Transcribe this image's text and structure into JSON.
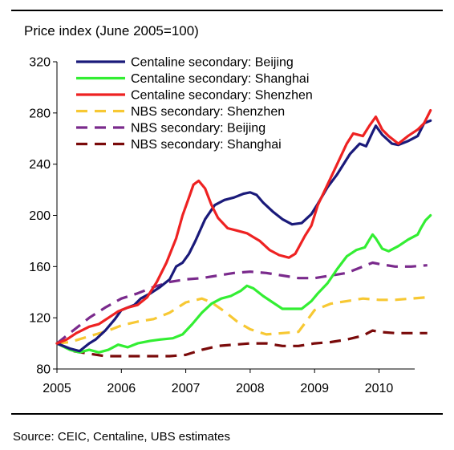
{
  "chart_data": {
    "type": "line",
    "title": "Price index (June 2005=100)",
    "xlabel": "",
    "ylabel": "",
    "xlim": [
      2005.0,
      2010.8
    ],
    "ylim": [
      80,
      320
    ],
    "x_ticks": [
      2005,
      2006,
      2007,
      2008,
      2009,
      2010
    ],
    "y_ticks": [
      80,
      120,
      160,
      200,
      240,
      280,
      320
    ],
    "legend_position": "top-left",
    "grid": false,
    "series": [
      {
        "name": "Centaline secondary: Beijing",
        "color": "#1a1a7a",
        "dash": "solid",
        "points": [
          [
            2005.0,
            100
          ],
          [
            2005.2,
            96
          ],
          [
            2005.35,
            94
          ],
          [
            2005.5,
            100
          ],
          [
            2005.6,
            103
          ],
          [
            2005.75,
            110
          ],
          [
            2005.9,
            119
          ],
          [
            2006.0,
            126
          ],
          [
            2006.1,
            128
          ],
          [
            2006.2,
            130
          ],
          [
            2006.3,
            135
          ],
          [
            2006.45,
            139
          ],
          [
            2006.6,
            144
          ],
          [
            2006.75,
            150
          ],
          [
            2006.85,
            160
          ],
          [
            2006.95,
            163
          ],
          [
            2007.05,
            170
          ],
          [
            2007.15,
            180
          ],
          [
            2007.3,
            197
          ],
          [
            2007.45,
            208
          ],
          [
            2007.6,
            212
          ],
          [
            2007.75,
            214
          ],
          [
            2007.9,
            217
          ],
          [
            2008.0,
            218
          ],
          [
            2008.1,
            216
          ],
          [
            2008.2,
            210
          ],
          [
            2008.35,
            203
          ],
          [
            2008.5,
            197
          ],
          [
            2008.65,
            193
          ],
          [
            2008.8,
            194
          ],
          [
            2008.95,
            201
          ],
          [
            2009.05,
            209
          ],
          [
            2009.2,
            222
          ],
          [
            2009.35,
            232
          ],
          [
            2009.55,
            248
          ],
          [
            2009.7,
            256
          ],
          [
            2009.8,
            254
          ],
          [
            2009.9,
            265
          ],
          [
            2009.95,
            270
          ],
          [
            2010.05,
            263
          ],
          [
            2010.2,
            256
          ],
          [
            2010.3,
            255
          ],
          [
            2010.45,
            258
          ],
          [
            2010.6,
            262
          ],
          [
            2010.7,
            272
          ],
          [
            2010.8,
            274
          ]
        ]
      },
      {
        "name": "Centaline secondary: Shanghai",
        "color": "#33ee33",
        "dash": "solid",
        "points": [
          [
            2005.0,
            100
          ],
          [
            2005.2,
            95
          ],
          [
            2005.35,
            93
          ],
          [
            2005.5,
            95
          ],
          [
            2005.65,
            93
          ],
          [
            2005.8,
            95
          ],
          [
            2005.95,
            99
          ],
          [
            2006.1,
            97
          ],
          [
            2006.25,
            100
          ],
          [
            2006.45,
            102
          ],
          [
            2006.6,
            103
          ],
          [
            2006.8,
            104
          ],
          [
            2006.95,
            107
          ],
          [
            2007.1,
            115
          ],
          [
            2007.25,
            124
          ],
          [
            2007.4,
            131
          ],
          [
            2007.55,
            135
          ],
          [
            2007.7,
            137
          ],
          [
            2007.85,
            141
          ],
          [
            2007.95,
            145
          ],
          [
            2008.05,
            143
          ],
          [
            2008.2,
            137
          ],
          [
            2008.35,
            132
          ],
          [
            2008.5,
            127
          ],
          [
            2008.65,
            127
          ],
          [
            2008.8,
            127
          ],
          [
            2008.95,
            133
          ],
          [
            2009.05,
            139
          ],
          [
            2009.2,
            147
          ],
          [
            2009.35,
            158
          ],
          [
            2009.5,
            168
          ],
          [
            2009.65,
            173
          ],
          [
            2009.78,
            175
          ],
          [
            2009.85,
            181
          ],
          [
            2009.9,
            185
          ],
          [
            2009.95,
            182
          ],
          [
            2010.05,
            174
          ],
          [
            2010.15,
            172
          ],
          [
            2010.3,
            176
          ],
          [
            2010.45,
            181
          ],
          [
            2010.6,
            185
          ],
          [
            2010.65,
            190
          ],
          [
            2010.72,
            196
          ],
          [
            2010.8,
            200
          ]
        ]
      },
      {
        "name": "Centaline secondary: Shenzhen",
        "color": "#ee2222",
        "dash": "solid",
        "points": [
          [
            2005.0,
            100
          ],
          [
            2005.15,
            103
          ],
          [
            2005.3,
            108
          ],
          [
            2005.5,
            113
          ],
          [
            2005.65,
            115
          ],
          [
            2005.8,
            120
          ],
          [
            2005.95,
            125
          ],
          [
            2006.1,
            128
          ],
          [
            2006.25,
            130
          ],
          [
            2006.4,
            136
          ],
          [
            2006.55,
            148
          ],
          [
            2006.7,
            163
          ],
          [
            2006.85,
            182
          ],
          [
            2006.95,
            200
          ],
          [
            2007.05,
            214
          ],
          [
            2007.12,
            224
          ],
          [
            2007.2,
            227
          ],
          [
            2007.3,
            221
          ],
          [
            2007.4,
            208
          ],
          [
            2007.5,
            198
          ],
          [
            2007.65,
            190
          ],
          [
            2007.8,
            188
          ],
          [
            2007.95,
            186
          ],
          [
            2008.05,
            183
          ],
          [
            2008.15,
            180
          ],
          [
            2008.3,
            173
          ],
          [
            2008.45,
            169
          ],
          [
            2008.6,
            167
          ],
          [
            2008.7,
            170
          ],
          [
            2008.85,
            184
          ],
          [
            2008.95,
            192
          ],
          [
            2009.05,
            208
          ],
          [
            2009.2,
            224
          ],
          [
            2009.35,
            240
          ],
          [
            2009.5,
            256
          ],
          [
            2009.6,
            264
          ],
          [
            2009.75,
            262
          ],
          [
            2009.85,
            270
          ],
          [
            2009.95,
            277
          ],
          [
            2010.05,
            267
          ],
          [
            2010.15,
            262
          ],
          [
            2010.3,
            256
          ],
          [
            2010.45,
            262
          ],
          [
            2010.6,
            267
          ],
          [
            2010.7,
            272
          ],
          [
            2010.8,
            282
          ]
        ]
      },
      {
        "name": "NBS secondary: Shenzhen",
        "color": "#f7c833",
        "dash": "dashed",
        "points": [
          [
            2005.0,
            100
          ],
          [
            2005.2,
            101
          ],
          [
            2005.4,
            104
          ],
          [
            2005.6,
            107
          ],
          [
            2005.8,
            110
          ],
          [
            2006.0,
            114
          ],
          [
            2006.25,
            117
          ],
          [
            2006.5,
            119
          ],
          [
            2006.75,
            124
          ],
          [
            2007.0,
            132
          ],
          [
            2007.25,
            135
          ],
          [
            2007.4,
            132
          ],
          [
            2007.6,
            125
          ],
          [
            2007.8,
            117
          ],
          [
            2008.0,
            111
          ],
          [
            2008.25,
            107
          ],
          [
            2008.5,
            108
          ],
          [
            2008.75,
            109
          ],
          [
            2009.0,
            126
          ],
          [
            2009.25,
            131
          ],
          [
            2009.5,
            133
          ],
          [
            2009.75,
            135
          ],
          [
            2010.0,
            134
          ],
          [
            2010.25,
            134
          ],
          [
            2010.5,
            135
          ],
          [
            2010.75,
            136
          ]
        ]
      },
      {
        "name": "NBS secondary: Beijing",
        "color": "#7a2a8c",
        "dash": "dashed",
        "points": [
          [
            2005.0,
            100
          ],
          [
            2005.25,
            110
          ],
          [
            2005.5,
            120
          ],
          [
            2005.75,
            128
          ],
          [
            2006.0,
            135
          ],
          [
            2006.25,
            139
          ],
          [
            2006.5,
            144
          ],
          [
            2006.75,
            148
          ],
          [
            2007.0,
            150
          ],
          [
            2007.25,
            151
          ],
          [
            2007.5,
            153
          ],
          [
            2007.75,
            155
          ],
          [
            2008.0,
            156
          ],
          [
            2008.25,
            155
          ],
          [
            2008.5,
            153
          ],
          [
            2008.75,
            151
          ],
          [
            2009.0,
            151
          ],
          [
            2009.25,
            153
          ],
          [
            2009.5,
            155
          ],
          [
            2009.75,
            160
          ],
          [
            2009.9,
            163
          ],
          [
            2010.0,
            162
          ],
          [
            2010.25,
            160
          ],
          [
            2010.5,
            160
          ],
          [
            2010.75,
            161
          ]
        ]
      },
      {
        "name": "NBS secondary: Shanghai",
        "color": "#7a0a0a",
        "dash": "dashed",
        "points": [
          [
            2005.0,
            100
          ],
          [
            2005.25,
            94
          ],
          [
            2005.5,
            92
          ],
          [
            2005.75,
            90
          ],
          [
            2006.0,
            90
          ],
          [
            2006.25,
            90
          ],
          [
            2006.5,
            90
          ],
          [
            2006.75,
            90
          ],
          [
            2007.0,
            91
          ],
          [
            2007.25,
            95
          ],
          [
            2007.5,
            98
          ],
          [
            2007.75,
            99
          ],
          [
            2008.0,
            100
          ],
          [
            2008.25,
            100
          ],
          [
            2008.5,
            98
          ],
          [
            2008.75,
            98
          ],
          [
            2009.0,
            100
          ],
          [
            2009.25,
            101
          ],
          [
            2009.5,
            103
          ],
          [
            2009.75,
            106
          ],
          [
            2009.9,
            110
          ],
          [
            2010.0,
            109
          ],
          [
            2010.25,
            108
          ],
          [
            2010.5,
            108
          ],
          [
            2010.75,
            108
          ]
        ]
      }
    ]
  },
  "footer": {
    "source": "Source: CEIC, Centaline, UBS estimates"
  }
}
